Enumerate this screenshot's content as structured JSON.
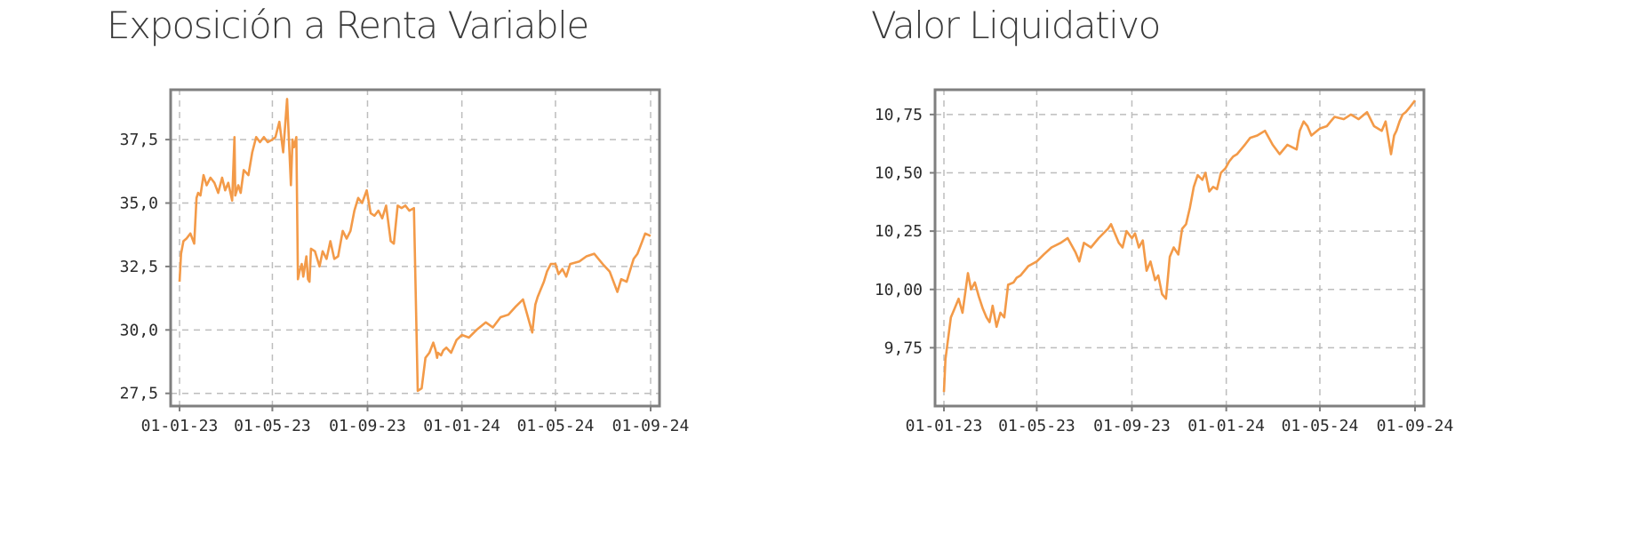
{
  "chart_data": [
    {
      "type": "line",
      "title": "Exposición a Renta Variable",
      "xlabel": "",
      "ylabel": "",
      "x_ticks": [
        "01-01-23",
        "01-05-23",
        "01-09-23",
        "01-01-24",
        "01-05-24",
        "01-09-24"
      ],
      "y_ticks": [
        "27,5",
        "30,0",
        "32,5",
        "35,0",
        "37,5"
      ],
      "ylim": [
        27,
        39.5
      ],
      "grid": true,
      "color": "#f39a48",
      "series": [
        {
          "x": [
            "2023-01-01",
            "2023-01-03",
            "2023-01-06",
            "2023-01-10",
            "2023-01-15",
            "2023-01-20",
            "2023-01-23",
            "2023-01-25",
            "2023-01-28",
            "2023-02-01",
            "2023-02-05",
            "2023-02-10",
            "2023-02-15",
            "2023-02-20",
            "2023-02-25",
            "2023-03-01",
            "2023-03-05",
            "2023-03-10",
            "2023-03-13",
            "2023-03-14",
            "2023-03-16",
            "2023-03-18",
            "2023-03-21",
            "2023-03-25",
            "2023-03-31",
            "2023-04-05",
            "2023-04-10",
            "2023-04-15",
            "2023-04-20",
            "2023-04-25",
            "2023-05-01",
            "2023-05-05",
            "2023-05-10",
            "2023-05-15",
            "2023-05-20",
            "2023-05-25",
            "2023-05-27",
            "2023-05-29",
            "2023-06-01",
            "2023-06-03",
            "2023-06-05",
            "2023-06-08",
            "2023-06-10",
            "2023-06-14",
            "2023-06-16",
            "2023-06-18",
            "2023-06-20",
            "2023-06-25",
            "2023-07-01",
            "2023-07-05",
            "2023-07-10",
            "2023-07-15",
            "2023-07-20",
            "2023-07-25",
            "2023-07-31",
            "2023-08-05",
            "2023-08-10",
            "2023-08-15",
            "2023-08-20",
            "2023-08-25",
            "2023-08-31",
            "2023-09-05",
            "2023-09-10",
            "2023-09-15",
            "2023-09-20",
            "2023-09-25",
            "2023-10-01",
            "2023-10-05",
            "2023-10-10",
            "2023-10-15",
            "2023-10-20",
            "2023-10-25",
            "2023-10-31",
            "2023-11-05",
            "2023-11-10",
            "2023-11-15",
            "2023-11-20",
            "2023-11-25",
            "2023-11-28",
            "2023-11-30",
            "2023-12-01",
            "2023-12-05",
            "2023-12-08",
            "2023-12-12",
            "2023-12-18",
            "2023-12-25",
            "2024-01-01",
            "2024-01-10",
            "2024-01-20",
            "2024-02-01",
            "2024-02-10",
            "2024-02-20",
            "2024-03-01",
            "2024-03-10",
            "2024-03-20",
            "2024-04-01",
            "2024-04-05",
            "2024-04-08",
            "2024-04-12",
            "2024-04-16",
            "2024-04-20",
            "2024-04-25",
            "2024-05-01",
            "2024-05-05",
            "2024-05-10",
            "2024-05-15",
            "2024-05-20",
            "2024-06-01",
            "2024-06-10",
            "2024-06-20",
            "2024-07-01",
            "2024-07-10",
            "2024-07-20",
            "2024-07-25",
            "2024-08-01",
            "2024-08-05",
            "2024-08-10",
            "2024-08-15",
            "2024-08-20",
            "2024-08-25",
            "2024-09-01"
          ],
          "values": [
            31.9,
            33.0,
            33.5,
            33.6,
            33.8,
            33.4,
            35.2,
            35.4,
            35.3,
            36.1,
            35.7,
            36.0,
            35.8,
            35.4,
            36.0,
            35.5,
            35.8,
            35.1,
            37.6,
            35.3,
            35.5,
            35.7,
            35.4,
            36.3,
            36.1,
            37.0,
            37.6,
            37.4,
            37.6,
            37.4,
            37.5,
            37.6,
            38.2,
            37.0,
            39.1,
            35.7,
            37.5,
            37.2,
            37.6,
            32.0,
            32.3,
            32.6,
            32.1,
            32.9,
            32.0,
            31.9,
            33.2,
            33.1,
            32.5,
            33.1,
            32.8,
            33.5,
            32.8,
            32.9,
            33.9,
            33.6,
            33.9,
            34.7,
            35.2,
            35.0,
            35.5,
            34.6,
            34.5,
            34.7,
            34.4,
            34.9,
            33.5,
            33.4,
            34.9,
            34.8,
            34.9,
            34.7,
            34.8,
            27.6,
            27.7,
            28.9,
            29.1,
            29.5,
            29.2,
            28.9,
            29.1,
            29.0,
            29.2,
            29.3,
            29.1,
            29.6,
            29.8,
            29.7,
            30.0,
            30.3,
            30.1,
            30.5,
            30.6,
            30.9,
            31.2,
            29.9,
            31.0,
            31.3,
            31.6,
            31.9,
            32.3,
            32.6,
            32.6,
            32.2,
            32.4,
            32.1,
            32.6,
            32.7,
            32.9,
            33.0,
            32.6,
            32.3,
            31.5,
            32.0,
            31.9,
            32.3,
            32.8,
            33.0,
            33.4,
            33.8,
            33.7
          ]
        }
      ]
    },
    {
      "type": "line",
      "title": "Valor Liquidativo",
      "xlabel": "",
      "ylabel": "",
      "x_ticks": [
        "01-01-23",
        "01-05-23",
        "01-09-23",
        "01-01-24",
        "01-05-24",
        "01-09-24"
      ],
      "y_ticks": [
        "9,75",
        "10,00",
        "10,25",
        "10,50",
        "10,75"
      ],
      "ylim": [
        9.5,
        10.86
      ],
      "grid": true,
      "color": "#f39a48",
      "series": [
        {
          "x": [
            "2023-01-01",
            "2023-01-03",
            "2023-01-06",
            "2023-01-10",
            "2023-01-15",
            "2023-01-20",
            "2023-01-25",
            "2023-02-01",
            "2023-02-05",
            "2023-02-10",
            "2023-02-15",
            "2023-02-20",
            "2023-02-25",
            "2023-03-01",
            "2023-03-05",
            "2023-03-10",
            "2023-03-15",
            "2023-03-20",
            "2023-03-25",
            "2023-04-01",
            "2023-04-05",
            "2023-04-10",
            "2023-04-20",
            "2023-05-01",
            "2023-05-10",
            "2023-05-20",
            "2023-06-01",
            "2023-06-10",
            "2023-06-20",
            "2023-06-25",
            "2023-07-01",
            "2023-07-10",
            "2023-07-20",
            "2023-08-01",
            "2023-08-05",
            "2023-08-10",
            "2023-08-15",
            "2023-08-20",
            "2023-08-25",
            "2023-09-01",
            "2023-09-05",
            "2023-09-10",
            "2023-09-15",
            "2023-09-20",
            "2023-09-25",
            "2023-10-01",
            "2023-10-05",
            "2023-10-10",
            "2023-10-15",
            "2023-10-20",
            "2023-10-25",
            "2023-10-31",
            "2023-11-05",
            "2023-11-10",
            "2023-11-15",
            "2023-11-20",
            "2023-11-25",
            "2023-12-01",
            "2023-12-05",
            "2023-12-10",
            "2023-12-15",
            "2023-12-20",
            "2023-12-25",
            "2023-12-31",
            "2024-01-05",
            "2024-01-10",
            "2024-01-15",
            "2024-01-20",
            "2024-01-25",
            "2024-02-01",
            "2024-02-10",
            "2024-02-20",
            "2024-03-01",
            "2024-03-10",
            "2024-03-20",
            "2024-04-01",
            "2024-04-05",
            "2024-04-10",
            "2024-04-15",
            "2024-04-20",
            "2024-05-01",
            "2024-05-10",
            "2024-05-15",
            "2024-05-20",
            "2024-06-01",
            "2024-06-10",
            "2024-06-20",
            "2024-07-01",
            "2024-07-10",
            "2024-07-20",
            "2024-07-25",
            "2024-08-01",
            "2024-08-05",
            "2024-08-08",
            "2024-08-12",
            "2024-08-16",
            "2024-08-20",
            "2024-08-25",
            "2024-09-01"
          ],
          "values": [
            9.56,
            9.7,
            9.78,
            9.88,
            9.92,
            9.96,
            9.9,
            10.07,
            10.0,
            10.03,
            9.97,
            9.92,
            9.88,
            9.86,
            9.93,
            9.84,
            9.9,
            9.88,
            10.02,
            10.03,
            10.05,
            10.06,
            10.1,
            10.12,
            10.15,
            10.18,
            10.2,
            10.22,
            10.16,
            10.12,
            10.2,
            10.18,
            10.22,
            10.26,
            10.28,
            10.24,
            10.2,
            10.18,
            10.25,
            10.22,
            10.24,
            10.18,
            10.21,
            10.08,
            10.12,
            10.04,
            10.06,
            9.98,
            9.96,
            10.14,
            10.18,
            10.15,
            10.26,
            10.28,
            10.35,
            10.44,
            10.49,
            10.47,
            10.5,
            10.42,
            10.44,
            10.43,
            10.5,
            10.52,
            10.55,
            10.57,
            10.58,
            10.6,
            10.62,
            10.65,
            10.66,
            10.68,
            10.62,
            10.58,
            10.62,
            10.6,
            10.68,
            10.72,
            10.7,
            10.66,
            10.69,
            10.7,
            10.72,
            10.74,
            10.73,
            10.75,
            10.73,
            10.76,
            10.7,
            10.68,
            10.72,
            10.58,
            10.66,
            10.68,
            10.72,
            10.75,
            10.76,
            10.78,
            10.81
          ]
        }
      ]
    }
  ]
}
